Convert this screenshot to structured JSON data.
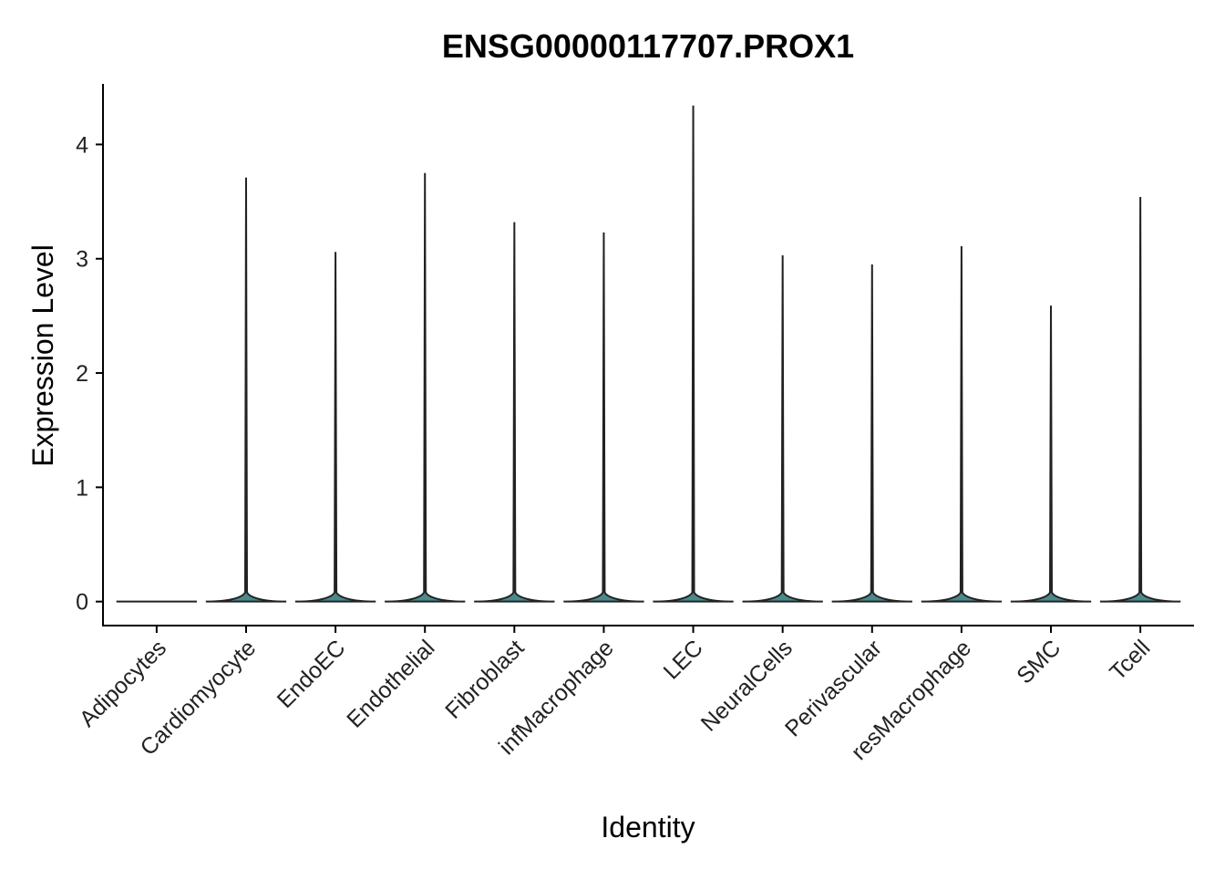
{
  "chart_data": {
    "type": "violin",
    "title": "ENSG00000117707.PROX1",
    "x_label": "Identity",
    "y_label": "Expression Level",
    "categories": [
      "Adipocytes",
      "Cardiomyocyte",
      "EndoEC",
      "Endothelial",
      "Fibroblast",
      "infMacrophage",
      "LEC",
      "NeuralCells",
      "Perivascular",
      "resMacrophage",
      "SMC",
      "Tcell"
    ],
    "values": [
      0,
      3.71,
      3.06,
      3.75,
      3.32,
      3.23,
      4.34,
      3.03,
      2.95,
      3.11,
      2.59,
      3.54
    ],
    "color": "#4a8a8c",
    "ylim": [
      -0.21,
      4.53
    ],
    "yticks": [
      0,
      1,
      2,
      3,
      4
    ],
    "grid": false
  }
}
